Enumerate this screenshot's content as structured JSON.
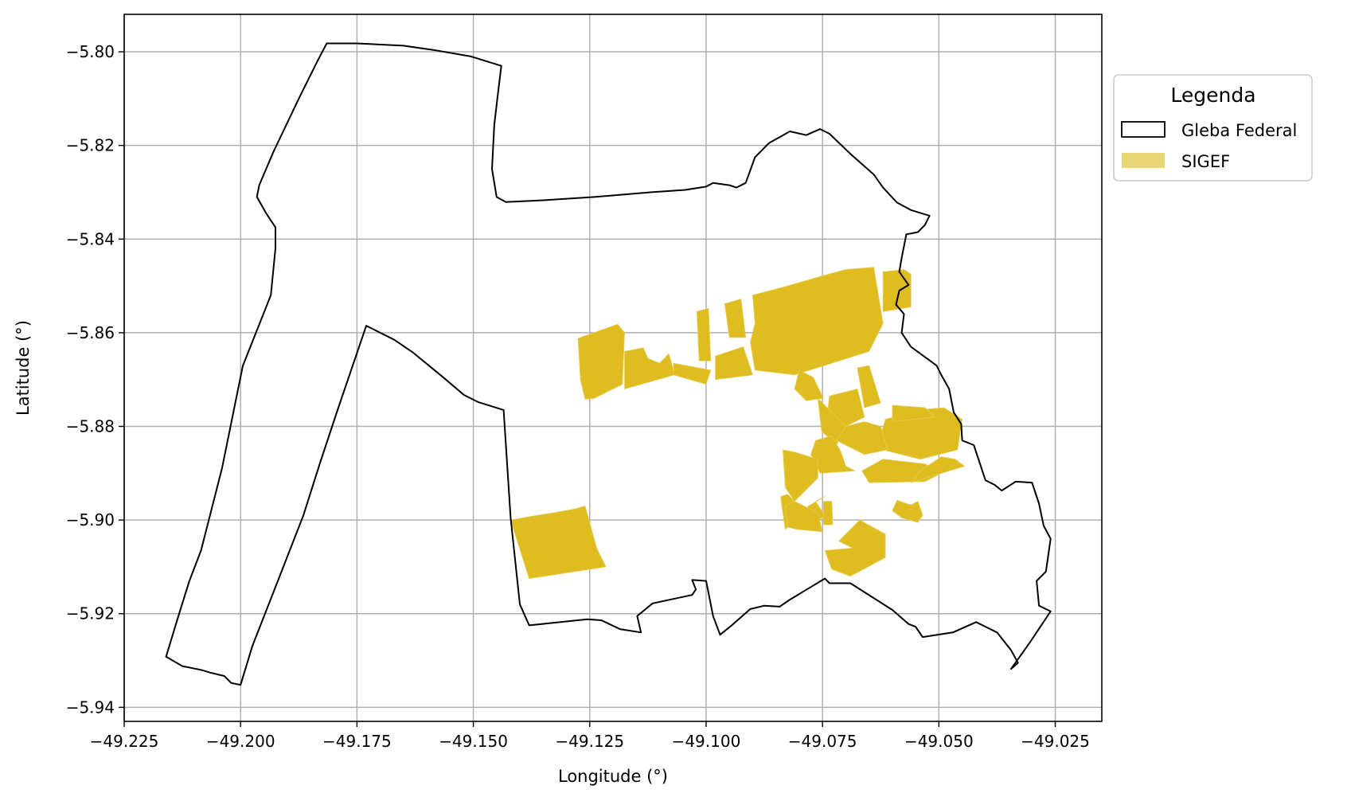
{
  "legend": {
    "title": "Legenda",
    "items": [
      {
        "label": "Gleba Federal",
        "style": "outline",
        "color": "#000000"
      },
      {
        "label": "SIGEF",
        "style": "fill",
        "color": "#e8d574"
      }
    ]
  },
  "colors": {
    "gleba_outline": "#000000",
    "sigef_fill": "#dfbd20",
    "grid": "#b0b0b0",
    "legend_border": "#cccccc"
  },
  "chart_data": {
    "type": "map",
    "xlabel": "Longitude (°)",
    "ylabel": "Latitude (°)",
    "xlim": [
      -49.225,
      -49.015
    ],
    "ylim": [
      -5.943,
      -5.792
    ],
    "grid": true,
    "legend_position": "outside-top-right",
    "x_ticks": [
      {
        "value": -49.225,
        "label": "−49.225"
      },
      {
        "value": -49.2,
        "label": "−49.200"
      },
      {
        "value": -49.175,
        "label": "−49.175"
      },
      {
        "value": -49.15,
        "label": "−49.150"
      },
      {
        "value": -49.125,
        "label": "−49.125"
      },
      {
        "value": -49.1,
        "label": "−49.100"
      },
      {
        "value": -49.075,
        "label": "−49.075"
      },
      {
        "value": -49.05,
        "label": "−49.050"
      },
      {
        "value": -49.025,
        "label": "−49.025"
      }
    ],
    "y_ticks": [
      {
        "value": -5.8,
        "label": "−5.80"
      },
      {
        "value": -5.82,
        "label": "−5.82"
      },
      {
        "value": -5.84,
        "label": "−5.84"
      },
      {
        "value": -5.86,
        "label": "−5.86"
      },
      {
        "value": -5.88,
        "label": "−5.88"
      },
      {
        "value": -5.9,
        "label": "−5.90"
      },
      {
        "value": -5.92,
        "label": "−5.92"
      },
      {
        "value": -5.94,
        "label": "−5.94"
      }
    ],
    "gleba_federal": [
      [
        -49.216,
        -5.9292
      ],
      [
        -49.2125,
        -5.9312
      ],
      [
        -49.2085,
        -5.932
      ],
      [
        -49.2065,
        -5.9326
      ],
      [
        -49.2035,
        -5.9333
      ],
      [
        -49.202,
        -5.9348
      ],
      [
        -49.2,
        -5.9352
      ],
      [
        -49.1975,
        -5.927
      ],
      [
        -49.192,
        -5.913
      ],
      [
        -49.1865,
        -5.899
      ],
      [
        -49.183,
        -5.888
      ],
      [
        -49.179,
        -5.876
      ],
      [
        -49.173,
        -5.8585
      ],
      [
        -49.167,
        -5.8615
      ],
      [
        -49.163,
        -5.8642
      ],
      [
        -49.1565,
        -5.8695
      ],
      [
        -49.152,
        -5.8733
      ],
      [
        -49.149,
        -5.8748
      ],
      [
        -49.1435,
        -5.8765
      ],
      [
        -49.142,
        -5.8995
      ],
      [
        -49.14,
        -5.918
      ],
      [
        -49.138,
        -5.9225
      ],
      [
        -49.1255,
        -5.9212
      ],
      [
        -49.1225,
        -5.9214
      ],
      [
        -49.1185,
        -5.9233
      ],
      [
        -49.114,
        -5.924
      ],
      [
        -49.1148,
        -5.9205
      ],
      [
        -49.1115,
        -5.9178
      ],
      [
        -49.103,
        -5.916
      ],
      [
        -49.1022,
        -5.9148
      ],
      [
        -49.103,
        -5.9128
      ],
      [
        -49.1,
        -5.913
      ],
      [
        -49.0985,
        -5.9205
      ],
      [
        -49.097,
        -5.9245
      ],
      [
        -49.0945,
        -5.9225
      ],
      [
        -49.0905,
        -5.919
      ],
      [
        -49.0875,
        -5.9183
      ],
      [
        -49.0842,
        -5.9185
      ],
      [
        -49.082,
        -5.917
      ],
      [
        -49.0745,
        -5.9125
      ],
      [
        -49.0735,
        -5.9135
      ],
      [
        -49.069,
        -5.9135
      ],
      [
        -49.06,
        -5.9192
      ],
      [
        -49.0565,
        -5.9222
      ],
      [
        -49.055,
        -5.9228
      ],
      [
        -49.0535,
        -5.925
      ],
      [
        -49.047,
        -5.924
      ],
      [
        -49.042,
        -5.9218
      ],
      [
        -49.0375,
        -5.924
      ],
      [
        -49.0345,
        -5.9278
      ],
      [
        -49.033,
        -5.9305
      ],
      [
        -49.0345,
        -5.9318
      ],
      [
        -49.0305,
        -5.9262
      ],
      [
        -49.026,
        -5.9195
      ],
      [
        -49.0285,
        -5.9183
      ],
      [
        -49.029,
        -5.913
      ],
      [
        -49.027,
        -5.911
      ],
      [
        -49.026,
        -5.904
      ],
      [
        -49.0275,
        -5.9012
      ],
      [
        -49.0285,
        -5.8965
      ],
      [
        -49.03,
        -5.892
      ],
      [
        -49.0335,
        -5.8918
      ],
      [
        -49.0365,
        -5.8937
      ],
      [
        -49.038,
        -5.8925
      ],
      [
        -49.04,
        -5.8915
      ],
      [
        -49.0425,
        -5.884
      ],
      [
        -49.045,
        -5.883
      ],
      [
        -49.0452,
        -5.8795
      ],
      [
        -49.0468,
        -5.877
      ],
      [
        -49.0478,
        -5.872
      ],
      [
        -49.0495,
        -5.869
      ],
      [
        -49.0505,
        -5.867
      ],
      [
        -49.056,
        -5.863
      ],
      [
        -49.058,
        -5.86
      ],
      [
        -49.0575,
        -5.856
      ],
      [
        -49.0592,
        -5.854
      ],
      [
        -49.0585,
        -5.851
      ],
      [
        -49.0565,
        -5.8498
      ],
      [
        -49.0585,
        -5.847
      ],
      [
        -49.058,
        -5.844
      ],
      [
        -49.057,
        -5.839
      ],
      [
        -49.0545,
        -5.8385
      ],
      [
        -49.053,
        -5.837
      ],
      [
        -49.052,
        -5.835
      ],
      [
        -49.056,
        -5.8338
      ],
      [
        -49.059,
        -5.8322
      ],
      [
        -49.062,
        -5.829
      ],
      [
        -49.064,
        -5.8262
      ],
      [
        -49.069,
        -5.8218
      ],
      [
        -49.0735,
        -5.8175
      ],
      [
        -49.0755,
        -5.8165
      ],
      [
        -49.0785,
        -5.8178
      ],
      [
        -49.082,
        -5.817
      ],
      [
        -49.0865,
        -5.8195
      ],
      [
        -49.0895,
        -5.8225
      ],
      [
        -49.0915,
        -5.828
      ],
      [
        -49.0935,
        -5.829
      ],
      [
        -49.095,
        -5.8285
      ],
      [
        -49.0985,
        -5.828
      ],
      [
        -49.1,
        -5.8288
      ],
      [
        -49.1045,
        -5.8295
      ],
      [
        -49.112,
        -5.83
      ],
      [
        -49.124,
        -5.831
      ],
      [
        -49.135,
        -5.8317
      ],
      [
        -49.143,
        -5.8321
      ],
      [
        -49.145,
        -5.831
      ],
      [
        -49.146,
        -5.825
      ],
      [
        -49.1455,
        -5.8155
      ],
      [
        -49.1445,
        -5.8072
      ],
      [
        -49.144,
        -5.803
      ],
      [
        -49.1505,
        -5.801
      ],
      [
        -49.158,
        -5.7997
      ],
      [
        -49.165,
        -5.7987
      ],
      [
        -49.175,
        -5.7982
      ],
      [
        -49.1815,
        -5.7982
      ],
      [
        -49.1835,
        -5.802
      ],
      [
        -49.1875,
        -5.81
      ],
      [
        -49.193,
        -5.8215
      ],
      [
        -49.196,
        -5.8285
      ],
      [
        -49.1965,
        -5.831
      ],
      [
        -49.1945,
        -5.8345
      ],
      [
        -49.1925,
        -5.8375
      ],
      [
        -49.1925,
        -5.842
      ],
      [
        -49.1935,
        -5.852
      ],
      [
        -49.1975,
        -5.862
      ],
      [
        -49.1995,
        -5.867
      ],
      [
        -49.204,
        -5.889
      ],
      [
        -49.2085,
        -5.9065
      ],
      [
        -49.211,
        -5.913
      ],
      [
        -49.2135,
        -5.921
      ],
      [
        -49.216,
        -5.9292
      ]
    ],
    "sigef_parcels": [
      [
        [
          -49.1275,
          -5.8612
        ],
        [
          -49.119,
          -5.8582
        ],
        [
          -49.1175,
          -5.86
        ],
        [
          -49.118,
          -5.871
        ],
        [
          -49.124,
          -5.874
        ],
        [
          -49.126,
          -5.8742
        ],
        [
          -49.127,
          -5.87
        ]
      ],
      [
        [
          -49.1175,
          -5.864
        ],
        [
          -49.1135,
          -5.8632
        ],
        [
          -49.1125,
          -5.8655
        ],
        [
          -49.11,
          -5.8665
        ],
        [
          -49.108,
          -5.8645
        ],
        [
          -49.107,
          -5.868
        ],
        [
          -49.1068,
          -5.869
        ],
        [
          -49.1175,
          -5.872
        ]
      ],
      [
        [
          -49.107,
          -5.869
        ],
        [
          -49.1,
          -5.871
        ],
        [
          -49.099,
          -5.868
        ],
        [
          -49.107,
          -5.8665
        ]
      ],
      [
        [
          -49.102,
          -5.8555
        ],
        [
          -49.0995,
          -5.8548
        ],
        [
          -49.099,
          -5.866
        ],
        [
          -49.1015,
          -5.866
        ]
      ],
      [
        [
          -49.098,
          -5.865
        ],
        [
          -49.092,
          -5.863
        ],
        [
          -49.09,
          -5.869
        ],
        [
          -49.098,
          -5.87
        ]
      ],
      [
        [
          -49.096,
          -5.8538
        ],
        [
          -49.0925,
          -5.8528
        ],
        [
          -49.0915,
          -5.861
        ],
        [
          -49.095,
          -5.861
        ]
      ],
      [
        [
          -49.09,
          -5.852
        ],
        [
          -49.0825,
          -5.85
        ],
        [
          -49.0755,
          -5.848
        ],
        [
          -49.07,
          -5.8465
        ],
        [
          -49.064,
          -5.846
        ],
        [
          -49.062,
          -5.858
        ],
        [
          -49.065,
          -5.864
        ],
        [
          -49.081,
          -5.869
        ],
        [
          -49.0895,
          -5.868
        ],
        [
          -49.0905,
          -5.862
        ],
        [
          -49.0895,
          -5.858
        ]
      ],
      [
        [
          -49.062,
          -5.847
        ],
        [
          -49.0575,
          -5.8465
        ],
        [
          -49.056,
          -5.8475
        ],
        [
          -49.056,
          -5.8545
        ],
        [
          -49.062,
          -5.8555
        ]
      ],
      [
        [
          -49.08,
          -5.868
        ],
        [
          -49.077,
          -5.8695
        ],
        [
          -49.0748,
          -5.874
        ],
        [
          -49.0785,
          -5.8745
        ],
        [
          -49.081,
          -5.872
        ]
      ],
      [
        [
          -49.0735,
          -5.8735
        ],
        [
          -49.0675,
          -5.872
        ],
        [
          -49.066,
          -5.878
        ],
        [
          -49.07,
          -5.88
        ],
        [
          -49.074,
          -5.878
        ]
      ],
      [
        [
          -49.076,
          -5.874
        ],
        [
          -49.07,
          -5.88
        ],
        [
          -49.072,
          -5.884
        ],
        [
          -49.0752,
          -5.881
        ]
      ],
      [
        [
          -49.0675,
          -5.8675
        ],
        [
          -49.065,
          -5.867
        ],
        [
          -49.0625,
          -5.875
        ],
        [
          -49.066,
          -5.876
        ]
      ],
      [
        [
          -49.0615,
          -5.8785
        ],
        [
          -49.0545,
          -5.8765
        ],
        [
          -49.049,
          -5.876
        ],
        [
          -49.0465,
          -5.8775
        ],
        [
          -49.045,
          -5.8785
        ],
        [
          -49.046,
          -5.885
        ],
        [
          -49.054,
          -5.887
        ],
        [
          -49.062,
          -5.885
        ],
        [
          -49.0625,
          -5.882
        ]
      ],
      [
        [
          -49.066,
          -5.879
        ],
        [
          -49.0625,
          -5.88
        ],
        [
          -49.061,
          -5.885
        ],
        [
          -49.066,
          -5.886
        ],
        [
          -49.07,
          -5.884
        ],
        [
          -49.072,
          -5.883
        ],
        [
          -49.07,
          -5.88
        ]
      ],
      [
        [
          -49.06,
          -5.8755
        ],
        [
          -49.053,
          -5.876
        ],
        [
          -49.051,
          -5.878
        ],
        [
          -49.06,
          -5.879
        ]
      ],
      [
        [
          -49.0665,
          -5.8895
        ],
        [
          -49.062,
          -5.887
        ],
        [
          -49.053,
          -5.888
        ],
        [
          -49.0495,
          -5.89
        ],
        [
          -49.053,
          -5.8918
        ],
        [
          -49.065,
          -5.892
        ]
      ],
      [
        [
          -49.0495,
          -5.8865
        ],
        [
          -49.0465,
          -5.887
        ],
        [
          -49.0445,
          -5.8885
        ],
        [
          -49.056,
          -5.892
        ],
        [
          -49.054,
          -5.8895
        ]
      ],
      [
        [
          -49.0765,
          -5.883
        ],
        [
          -49.073,
          -5.882
        ],
        [
          -49.071,
          -5.8855
        ],
        [
          -49.07,
          -5.8885
        ],
        [
          -49.068,
          -5.8895
        ],
        [
          -49.0755,
          -5.89
        ],
        [
          -49.0775,
          -5.886
        ]
      ],
      [
        [
          -49.0835,
          -5.885
        ],
        [
          -49.081,
          -5.8855
        ],
        [
          -49.076,
          -5.887
        ],
        [
          -49.076,
          -5.891
        ],
        [
          -49.078,
          -5.893
        ],
        [
          -49.081,
          -5.896
        ],
        [
          -49.083,
          -5.893
        ]
      ],
      [
        [
          -49.084,
          -5.895
        ],
        [
          -49.0825,
          -5.8945
        ],
        [
          -49.081,
          -5.896
        ],
        [
          -49.0815,
          -5.9005
        ],
        [
          -49.08,
          -5.902
        ],
        [
          -49.078,
          -5.902
        ],
        [
          -49.0745,
          -5.899
        ],
        [
          -49.0765,
          -5.896
        ],
        [
          -49.0745,
          -5.895
        ],
        [
          -49.078,
          -5.897
        ],
        [
          -49.083,
          -5.902
        ],
        [
          -49.0835,
          -5.8985
        ]
      ],
      [
        [
          -49.083,
          -5.897
        ],
        [
          -49.081,
          -5.896
        ],
        [
          -49.078,
          -5.8975
        ],
        [
          -49.076,
          -5.8985
        ],
        [
          -49.075,
          -5.9025
        ],
        [
          -49.0805,
          -5.902
        ],
        [
          -49.0825,
          -5.9015
        ]
      ],
      [
        [
          -49.0748,
          -5.896
        ],
        [
          -49.073,
          -5.896
        ],
        [
          -49.0728,
          -5.901
        ],
        [
          -49.0748,
          -5.901
        ]
      ],
      [
        [
          -49.0715,
          -5.9045
        ],
        [
          -49.067,
          -5.9
        ],
        [
          -49.0615,
          -5.903
        ],
        [
          -49.0615,
          -5.908
        ],
        [
          -49.069,
          -5.912
        ],
        [
          -49.073,
          -5.9105
        ],
        [
          -49.0745,
          -5.9065
        ],
        [
          -49.0685,
          -5.906
        ]
      ],
      [
        [
          -49.0545,
          -5.896
        ],
        [
          -49.0535,
          -5.899
        ],
        [
          -49.0545,
          -5.9005
        ],
        [
          -49.058,
          -5.8995
        ],
        [
          -49.06,
          -5.898
        ],
        [
          -49.059,
          -5.8958
        ],
        [
          -49.056,
          -5.8968
        ]
      ],
      [
        [
          -49.142,
          -5.9
        ],
        [
          -49.1375,
          -5.8992
        ],
        [
          -49.133,
          -5.8985
        ],
        [
          -49.128,
          -5.8976
        ],
        [
          -49.126,
          -5.897
        ],
        [
          -49.1235,
          -5.906
        ],
        [
          -49.1215,
          -5.91
        ],
        [
          -49.1315,
          -5.9115
        ],
        [
          -49.138,
          -5.9125
        ]
      ]
    ]
  }
}
